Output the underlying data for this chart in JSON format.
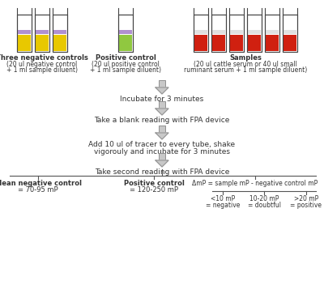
{
  "bg_color": "#ffffff",
  "text_color": "#333333",
  "arrow_color": "#909090",
  "tube_outline_color": "#444444",
  "tube_colors": {
    "negative": {
      "liquid_top": "#b090d0",
      "liquid_bottom": "#e8c800"
    },
    "positive": {
      "liquid_top": "#b090d0",
      "liquid_bottom": "#90c840"
    },
    "sample": {
      "liquid_top": "#e0e0e0",
      "liquid_bottom": "#d02010"
    }
  },
  "neg_control_label_bold": "Three negative controls",
  "neg_control_label_normal1": "(20 ul negative control",
  "neg_control_label_normal2": "+ 1 ml sample diluent)",
  "pos_control_label_bold": "Positive control",
  "pos_control_label_normal1": "(20 ul positive control",
  "pos_control_label_normal2": "+ 1 ml sample diluent)",
  "sample_label_bold": "Samples",
  "sample_label_normal1": "(20 ul cattle serum or 40 ul small",
  "sample_label_normal2": "ruminant serum + 1 ml sample diluent)",
  "step1": "Incubate for 3 minutes",
  "step2": "Take a blank reading with FPA device",
  "step3a": "Add 10 ul of tracer to every tube, shake",
  "step3b": "vigorouly and incubate for 3 minutes",
  "step4": "Take second reading with FPA device",
  "result1_bold": "Mean negative control",
  "result1_normal": "= 70-95 mP",
  "result2_bold": "Positive control",
  "result2_normal": "= 120-250 mP",
  "result3_line": "ΔmP = sample mP - negative control mP",
  "result3a_1": "<10 mP",
  "result3a_2": "= negative",
  "result3b_1": "10-20 mP",
  "result3b_2": "= doubtful",
  "result3c_1": ">20 mP",
  "result3c_2": "= positive"
}
